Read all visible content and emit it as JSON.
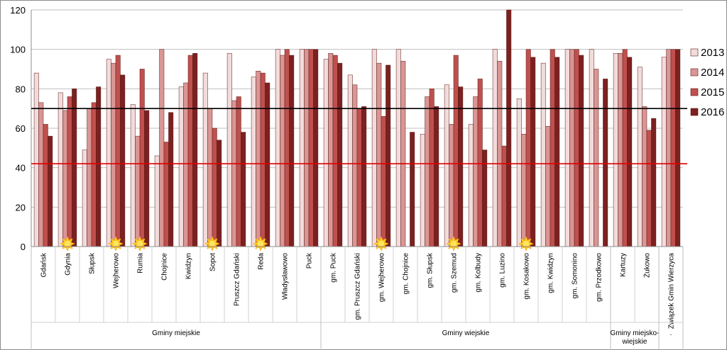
{
  "chart_data": {
    "type": "bar",
    "title": "",
    "xlabel": "",
    "ylabel": "",
    "ylim": [
      0,
      120
    ],
    "yticks": [
      0,
      20,
      40,
      60,
      80,
      100,
      120
    ],
    "grid": true,
    "legend": "right",
    "categories": [
      "Gdańsk",
      "Gdynia",
      "Słupsk",
      "Wejherowo",
      "Rumia",
      "Chojnice",
      "Kwidzyn",
      "Sopot",
      "Pruszcz Gdański",
      "Reda",
      "Władysławowo",
      "Puck",
      "gm. Puck",
      "gm. Pruszcz Gdański",
      "gm. Wejherowo",
      "gm. Chojnice",
      "gm. Słupsk",
      "gm. Szemud",
      "gm. Kolbudy",
      "gm. Luzino",
      "gm. Kosakowo",
      "gm. Kwidzyn",
      "gm. Somonino",
      "gm. Przodkowo",
      "Kartuzy",
      "Żukowo",
      "Związek Gmin Wierzyca"
    ],
    "series": [
      {
        "name": "2013",
        "color": "#f2dcdb",
        "values": [
          88,
          78,
          49,
          95,
          72,
          46,
          81,
          88,
          98,
          86,
          100,
          100,
          95,
          87,
          100,
          100,
          57,
          82,
          62,
          100,
          75,
          93,
          100,
          100,
          98,
          91,
          96
        ]
      },
      {
        "name": "2014",
        "color": "#d99694",
        "values": [
          73,
          69,
          70,
          93,
          56,
          100,
          83,
          70,
          74,
          89,
          97,
          100,
          98,
          82,
          93,
          94,
          76,
          62,
          76,
          94,
          57,
          61,
          100,
          90,
          98,
          71,
          100
        ]
      },
      {
        "name": "2015",
        "color": "#c0504d",
        "values": [
          62,
          76,
          73,
          97,
          90,
          53,
          97,
          60,
          76,
          88,
          100,
          100,
          97,
          70,
          66,
          0,
          80,
          97,
          85,
          51,
          100,
          100,
          100,
          0,
          100,
          59,
          100
        ]
      },
      {
        "name": "2016",
        "color": "#7b2120",
        "values": [
          56,
          80,
          81,
          87,
          69,
          68,
          98,
          54,
          58,
          83,
          97,
          100,
          93,
          71,
          92,
          58,
          71,
          81,
          49,
          120,
          96,
          96,
          97,
          85,
          96,
          65,
          100
        ]
      }
    ],
    "reference_lines": [
      {
        "value": 70,
        "color": "#000000"
      },
      {
        "value": 42,
        "color": "#e00000"
      }
    ],
    "markers": {
      "icon": "sun-icon",
      "color": "#ffd700",
      "categories": [
        "Gdynia",
        "Wejherowo",
        "Rumia",
        "Sopot",
        "Reda",
        "gm. Wejherowo",
        "gm. Szemud",
        "gm. Kosakowo"
      ]
    },
    "groups": [
      {
        "label": "Gminy miejskie",
        "start": 0,
        "end": 11
      },
      {
        "label": "Gminy wiejskie",
        "start": 12,
        "end": 23
      },
      {
        "label": "Gminy miejsko-wiejskie",
        "start": 24,
        "end": 25
      },
      {
        "label": ".",
        "start": 26,
        "end": 26
      }
    ]
  }
}
